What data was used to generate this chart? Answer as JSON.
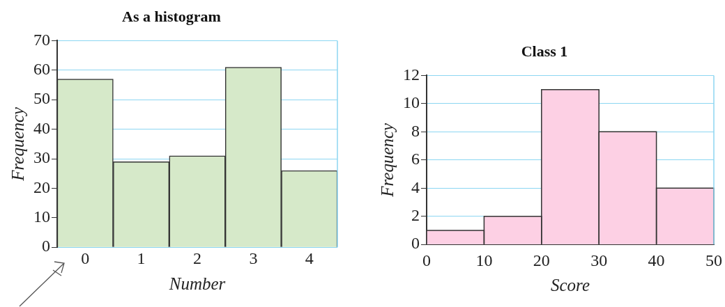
{
  "chart_data": [
    {
      "type": "bar",
      "title": "As a histogram",
      "xlabel": "Number",
      "ylabel": "Frequency",
      "categories": [
        "0",
        "1",
        "2",
        "3",
        "4"
      ],
      "values": [
        57,
        29,
        31,
        61,
        26
      ],
      "color": "#d6e9c9",
      "ylim": [
        0,
        70
      ],
      "yticks": [
        0,
        10,
        20,
        30,
        40,
        50,
        60,
        70
      ],
      "grid": "y"
    },
    {
      "type": "histogram",
      "title": "Class 1",
      "xlabel": "Score",
      "ylabel": "Frequency",
      "bins": [
        0,
        10,
        20,
        30,
        40,
        50
      ],
      "values": [
        1,
        2,
        11,
        8,
        4
      ],
      "color": "#fdd0e4",
      "xlim": [
        0,
        50
      ],
      "xticks": [
        0,
        10,
        20,
        30,
        40,
        50
      ],
      "ylim": [
        0,
        12
      ],
      "yticks": [
        0,
        2,
        4,
        6,
        8,
        10,
        12
      ],
      "grid": "y"
    }
  ]
}
